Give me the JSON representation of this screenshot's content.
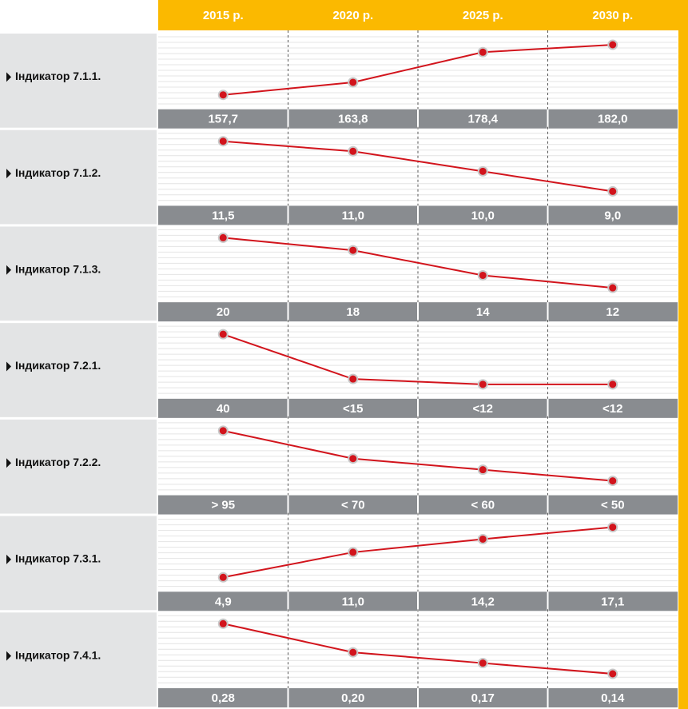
{
  "header": {
    "columns": [
      "2015 р.",
      "2020 р.",
      "2025 р.",
      "2030 р."
    ]
  },
  "chart_data": [
    {
      "type": "line",
      "title": "Індикатор 7.1.1.",
      "color": "#d2141c",
      "values": [
        157.7,
        163.8,
        178.4,
        182.0
      ],
      "value_labels": [
        "157,7",
        "163,8",
        "178,4",
        "182,0"
      ]
    },
    {
      "type": "line",
      "title": "Індикатор 7.1.2.",
      "color": "#d2141c",
      "values": [
        11.5,
        11.0,
        10.0,
        9.0
      ],
      "value_labels": [
        "11,5",
        "11,0",
        "10,0",
        "9,0"
      ]
    },
    {
      "type": "line",
      "title": "Індикатор 7.1.3.",
      "color": "#d2141c",
      "values": [
        20,
        18,
        14,
        12
      ],
      "value_labels": [
        "20",
        "18",
        "14",
        "12"
      ]
    },
    {
      "type": "line",
      "title": "Індикатор 7.2.1.",
      "color": "#d2141c",
      "values": [
        40,
        15,
        12,
        12
      ],
      "value_labels": [
        "40",
        "<15",
        "<12",
        "<12"
      ]
    },
    {
      "type": "line",
      "title": "Індикатор 7.2.2.",
      "color": "#d2141c",
      "values": [
        95,
        70,
        60,
        50
      ],
      "value_labels": [
        "> 95",
        "< 70",
        "< 60",
        "< 50"
      ]
    },
    {
      "type": "line",
      "title": "Індикатор 7.3.1.",
      "color": "#d2141c",
      "values": [
        4.9,
        11.0,
        14.2,
        17.1
      ],
      "value_labels": [
        "4,9",
        "11,0",
        "14,2",
        "17,1"
      ]
    },
    {
      "type": "line",
      "title": "Індикатор 7.4.1.",
      "color": "#d2141c",
      "values": [
        0.28,
        0.2,
        0.17,
        0.14
      ],
      "value_labels": [
        "0,28",
        "0,20",
        "0,17",
        "0,14"
      ]
    }
  ]
}
